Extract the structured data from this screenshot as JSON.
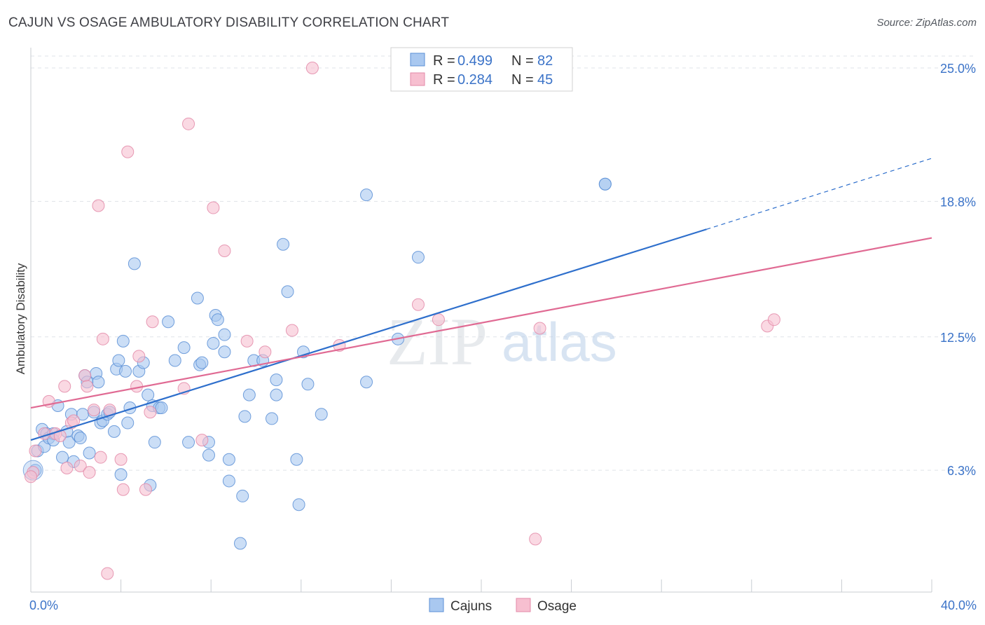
{
  "title": "CAJUN VS OSAGE AMBULATORY DISABILITY CORRELATION CHART",
  "source": "Source: ZipAtlas.com",
  "watermark": {
    "zip": "ZIP",
    "atlas": "atlas"
  },
  "chart_data": {
    "type": "scatter",
    "title": "CAJUN VS OSAGE AMBULATORY DISABILITY CORRELATION CHART",
    "xlabel": "",
    "ylabel": "Ambulatory Disability",
    "xlim": [
      0,
      40
    ],
    "ylim": [
      0,
      25
    ],
    "x_ticks": [
      {
        "value": 0,
        "label": "0.0%"
      },
      {
        "value": 40,
        "label": "40.0%"
      }
    ],
    "x_minor_ticks": [
      0,
      4,
      8,
      12,
      16,
      20,
      24,
      28,
      32,
      36,
      40
    ],
    "y_ticks": [
      {
        "value": 6.3,
        "label": "6.3%"
      },
      {
        "value": 12.5,
        "label": "12.5%"
      },
      {
        "value": 18.8,
        "label": "18.8%"
      },
      {
        "value": 25.0,
        "label": "25.0%"
      }
    ],
    "grid": "horizontal-dashed",
    "legend_position": "top-center",
    "colors": {
      "cajuns_fill": "#a9c8f0",
      "cajuns_stroke": "#5b8fd6",
      "cajuns_line": "#2e6fcc",
      "osage_fill": "#f7bfd0",
      "osage_stroke": "#e38aa8",
      "osage_line": "#e06a93",
      "tick_text": "#3b73c8"
    },
    "legend": [
      {
        "name": "Cajuns",
        "r_label": "R =",
        "r_value": "0.499",
        "n_label": "N =",
        "n_value": "82"
      },
      {
        "name": "Osage",
        "r_label": "R =",
        "r_value": "0.284",
        "n_label": "N =",
        "n_value": "45"
      }
    ],
    "series": [
      {
        "name": "Cajuns",
        "trend": {
          "x0": 0,
          "y0": 7.7,
          "x1": 30,
          "y1": 17.5,
          "dash_to_x": 40,
          "dash_to_y": 20.8
        },
        "points": [
          [
            0.2,
            6.3
          ],
          [
            0.3,
            7.2
          ],
          [
            0.5,
            8.2
          ],
          [
            0.6,
            7.4
          ],
          [
            0.7,
            8.0
          ],
          [
            0.8,
            7.8
          ],
          [
            1.0,
            8.0
          ],
          [
            1.0,
            7.7
          ],
          [
            1.2,
            9.3
          ],
          [
            1.4,
            6.9
          ],
          [
            1.6,
            8.1
          ],
          [
            1.7,
            7.6
          ],
          [
            1.8,
            8.9
          ],
          [
            1.9,
            6.7
          ],
          [
            2.1,
            7.9
          ],
          [
            2.2,
            7.8
          ],
          [
            2.3,
            8.9
          ],
          [
            2.4,
            10.7
          ],
          [
            2.5,
            10.4
          ],
          [
            2.6,
            7.1
          ],
          [
            2.8,
            9.0
          ],
          [
            2.9,
            10.8
          ],
          [
            3.0,
            10.4
          ],
          [
            3.1,
            8.5
          ],
          [
            3.2,
            8.6
          ],
          [
            3.4,
            8.9
          ],
          [
            3.5,
            9.0
          ],
          [
            3.7,
            8.1
          ],
          [
            3.8,
            11.0
          ],
          [
            3.9,
            11.4
          ],
          [
            4.0,
            6.1
          ],
          [
            4.1,
            12.3
          ],
          [
            4.2,
            10.9
          ],
          [
            4.3,
            8.5
          ],
          [
            4.4,
            9.2
          ],
          [
            4.6,
            15.9
          ],
          [
            4.8,
            10.9
          ],
          [
            5.0,
            11.3
          ],
          [
            5.2,
            9.8
          ],
          [
            5.3,
            5.6
          ],
          [
            5.4,
            9.3
          ],
          [
            5.5,
            7.6
          ],
          [
            5.7,
            9.2
          ],
          [
            5.8,
            9.2
          ],
          [
            6.1,
            13.2
          ],
          [
            6.4,
            11.4
          ],
          [
            6.8,
            12.0
          ],
          [
            7.0,
            7.6
          ],
          [
            7.4,
            14.3
          ],
          [
            7.5,
            11.2
          ],
          [
            7.6,
            11.3
          ],
          [
            7.9,
            7.6
          ],
          [
            7.9,
            7.0
          ],
          [
            8.1,
            12.2
          ],
          [
            8.2,
            13.5
          ],
          [
            8.3,
            13.3
          ],
          [
            8.6,
            11.8
          ],
          [
            8.6,
            12.6
          ],
          [
            8.8,
            6.8
          ],
          [
            8.8,
            5.8
          ],
          [
            9.3,
            2.9
          ],
          [
            9.4,
            5.1
          ],
          [
            9.5,
            8.8
          ],
          [
            9.7,
            9.8
          ],
          [
            9.9,
            11.4
          ],
          [
            10.3,
            11.4
          ],
          [
            10.7,
            8.7
          ],
          [
            10.9,
            10.5
          ],
          [
            10.9,
            9.8
          ],
          [
            11.2,
            16.8
          ],
          [
            11.4,
            14.6
          ],
          [
            11.8,
            6.8
          ],
          [
            11.9,
            4.7
          ],
          [
            12.1,
            11.8
          ],
          [
            12.3,
            10.3
          ],
          [
            12.9,
            8.9
          ],
          [
            14.9,
            10.4
          ],
          [
            14.9,
            19.1
          ],
          [
            16.3,
            12.4
          ],
          [
            17.2,
            16.2
          ],
          [
            25.5,
            19.6
          ],
          [
            25.5,
            19.6
          ]
        ]
      },
      {
        "name": "Osage",
        "trend": {
          "x0": 0,
          "y0": 9.2,
          "x1": 40,
          "y1": 17.1
        },
        "points": [
          [
            0.1,
            6.2
          ],
          [
            0.2,
            7.2
          ],
          [
            0.6,
            8.0
          ],
          [
            0.8,
            9.5
          ],
          [
            1.1,
            8.0
          ],
          [
            1.3,
            7.9
          ],
          [
            1.5,
            10.2
          ],
          [
            1.6,
            6.4
          ],
          [
            1.8,
            8.5
          ],
          [
            1.9,
            8.6
          ],
          [
            2.2,
            6.5
          ],
          [
            2.4,
            10.7
          ],
          [
            2.5,
            10.2
          ],
          [
            2.6,
            6.2
          ],
          [
            2.8,
            9.1
          ],
          [
            3.0,
            18.6
          ],
          [
            3.1,
            6.9
          ],
          [
            3.2,
            12.4
          ],
          [
            3.4,
            1.5
          ],
          [
            3.5,
            9.1
          ],
          [
            4.0,
            6.8
          ],
          [
            4.1,
            5.4
          ],
          [
            4.3,
            21.1
          ],
          [
            4.7,
            10.2
          ],
          [
            4.8,
            11.6
          ],
          [
            5.1,
            5.4
          ],
          [
            5.3,
            9.0
          ],
          [
            5.4,
            13.2
          ],
          [
            6.8,
            10.1
          ],
          [
            7.0,
            22.4
          ],
          [
            7.6,
            7.7
          ],
          [
            8.1,
            18.5
          ],
          [
            8.6,
            16.5
          ],
          [
            9.6,
            12.3
          ],
          [
            10.4,
            11.8
          ],
          [
            11.6,
            12.8
          ],
          [
            12.5,
            25.0
          ],
          [
            13.7,
            12.1
          ],
          [
            17.2,
            14.0
          ],
          [
            18.1,
            13.3
          ],
          [
            22.4,
            3.1
          ],
          [
            22.6,
            12.9
          ],
          [
            32.7,
            13.0
          ],
          [
            33.0,
            13.3
          ],
          [
            0.0,
            6.0
          ]
        ]
      }
    ]
  },
  "bottom_legend": [
    {
      "label": "Cajuns"
    },
    {
      "label": "Osage"
    }
  ]
}
